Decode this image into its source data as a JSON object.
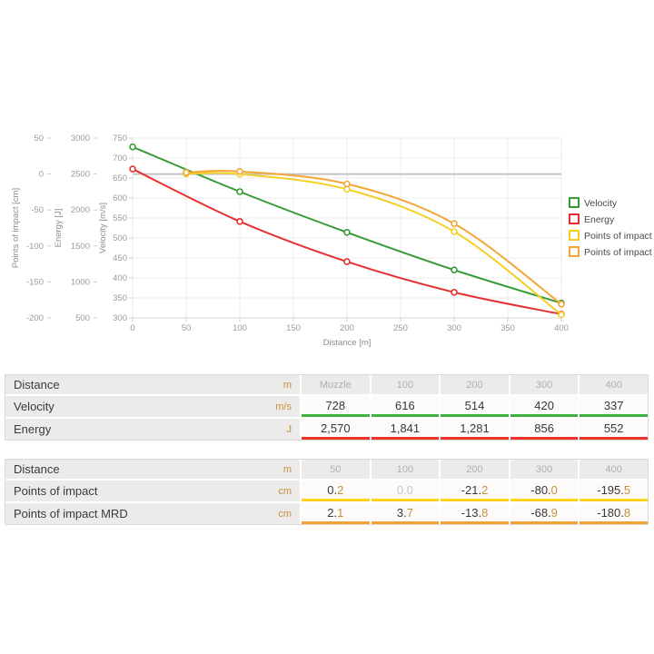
{
  "chart_data": {
    "type": "line",
    "title": "",
    "grid": true,
    "legend_position": "right",
    "x_axis": {
      "label": "Distance [m]",
      "min": 0,
      "max": 400,
      "ticks": [
        0,
        50,
        100,
        150,
        200,
        250,
        300,
        350,
        400
      ]
    },
    "y_axes": [
      {
        "id": "poi",
        "label": "Points of impact [cm]",
        "min": -200,
        "max": 50,
        "ticks": [
          50,
          0,
          -50,
          -100,
          -150,
          -200
        ]
      },
      {
        "id": "energy",
        "label": "Energy [J]",
        "min": 500,
        "max": 3000,
        "ticks": [
          3000,
          2500,
          2000,
          1500,
          1000,
          500
        ]
      },
      {
        "id": "velocity",
        "label": "Velocity [m/s]",
        "min": 300,
        "max": 750,
        "ticks": [
          750,
          700,
          650,
          600,
          550,
          500,
          450,
          400,
          350,
          300
        ]
      }
    ],
    "zero_line": {
      "axis": "poi",
      "value": 0,
      "color": "#c4c4c4"
    },
    "series": [
      {
        "name": "Velocity",
        "axis": "velocity",
        "color": "#369a36",
        "x": [
          0,
          100,
          200,
          300,
          400
        ],
        "values": [
          728,
          616,
          514,
          420,
          337
        ]
      },
      {
        "name": "Energy",
        "axis": "energy",
        "color": "#e62f2f",
        "x": [
          0,
          100,
          200,
          300,
          400
        ],
        "values": [
          2570,
          1841,
          1281,
          856,
          552
        ]
      },
      {
        "name": "Points of impact",
        "axis": "poi",
        "color": "#f5cf29",
        "x": [
          50,
          100,
          200,
          300,
          400
        ],
        "values": [
          0.2,
          0.0,
          -21.2,
          -80.0,
          -195.5
        ]
      },
      {
        "name": "Points of impact MRD",
        "axis": "poi",
        "color": "#f2a737",
        "x": [
          50,
          100,
          200,
          300,
          400
        ],
        "values": [
          2.1,
          3.7,
          -13.8,
          -68.9,
          -180.8
        ]
      }
    ]
  },
  "tables": [
    {
      "name": "velocity-energy-table",
      "rows": [
        {
          "label": "Distance",
          "unit": "m",
          "type": "header",
          "cells": [
            "Muzzle",
            "100",
            "200",
            "300",
            "400"
          ]
        },
        {
          "label": "Velocity",
          "unit": "m/s",
          "type": "data",
          "underline": "#3cb243",
          "cells": [
            "728",
            "616",
            "514",
            "420",
            "337"
          ]
        },
        {
          "label": "Energy",
          "unit": "J",
          "type": "data",
          "underline": "#ee3129",
          "cells": [
            "2,570",
            "1,841",
            "1,281",
            "856",
            "552"
          ]
        }
      ]
    },
    {
      "name": "points-of-impact-table",
      "rows": [
        {
          "label": "Distance",
          "unit": "m",
          "type": "header",
          "cells": [
            "50",
            "100",
            "200",
            "300",
            "400"
          ]
        },
        {
          "label": "Points of impact",
          "unit": "cm",
          "type": "data",
          "underline": "#ffd21c",
          "split_decimal": true,
          "muted": [
            1
          ],
          "cells": [
            "0.2",
            "0.0",
            "-21.2",
            "-80.0",
            "-195.5"
          ]
        },
        {
          "label": "Points of impact MRD",
          "unit": "cm",
          "type": "data",
          "underline": "#f2a232",
          "split_decimal": true,
          "cells": [
            "2.1",
            "3.7",
            "-13.8",
            "-68.9",
            "-180.8"
          ]
        }
      ]
    }
  ],
  "colors": {
    "accent_gold": "#c3913c",
    "muted_text": "#b2b0ae",
    "row_bg": "#edebe9",
    "grid": "#ececeb",
    "zero_line": "#c4c4c4",
    "tick_text": "#9d9a97",
    "axis_title": "#8f8c89",
    "legend_text": "#4c4a48"
  }
}
